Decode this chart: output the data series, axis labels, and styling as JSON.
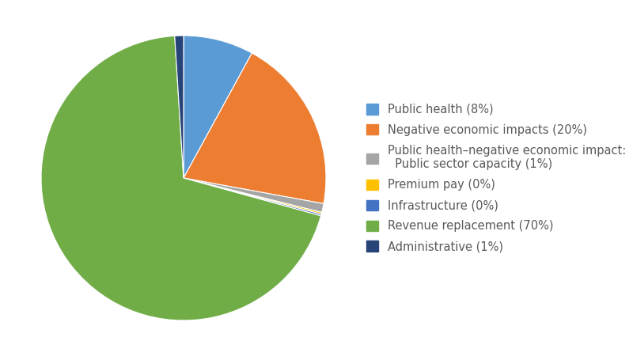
{
  "values": [
    8,
    20,
    1,
    0.2,
    0.2,
    70,
    1
  ],
  "colors": [
    "#5b9bd5",
    "#ed7d31",
    "#a5a5a5",
    "#ffc000",
    "#4472c4",
    "#70ad47",
    "#264478"
  ],
  "legend_labels": [
    "Public health (8%)",
    "Negative economic impacts (20%)",
    "Public health–negative economic impact:\n  Public sector capacity (1%)",
    "Premium pay (0%)",
    "Infrastructure (0%)",
    "Revenue replacement (70%)",
    "Administrative (1%)"
  ],
  "text_color": "#595959",
  "background_color": "#ffffff",
  "legend_fontsize": 10.5,
  "figsize": [
    8.0,
    4.5
  ],
  "dpi": 100,
  "startangle": 90
}
